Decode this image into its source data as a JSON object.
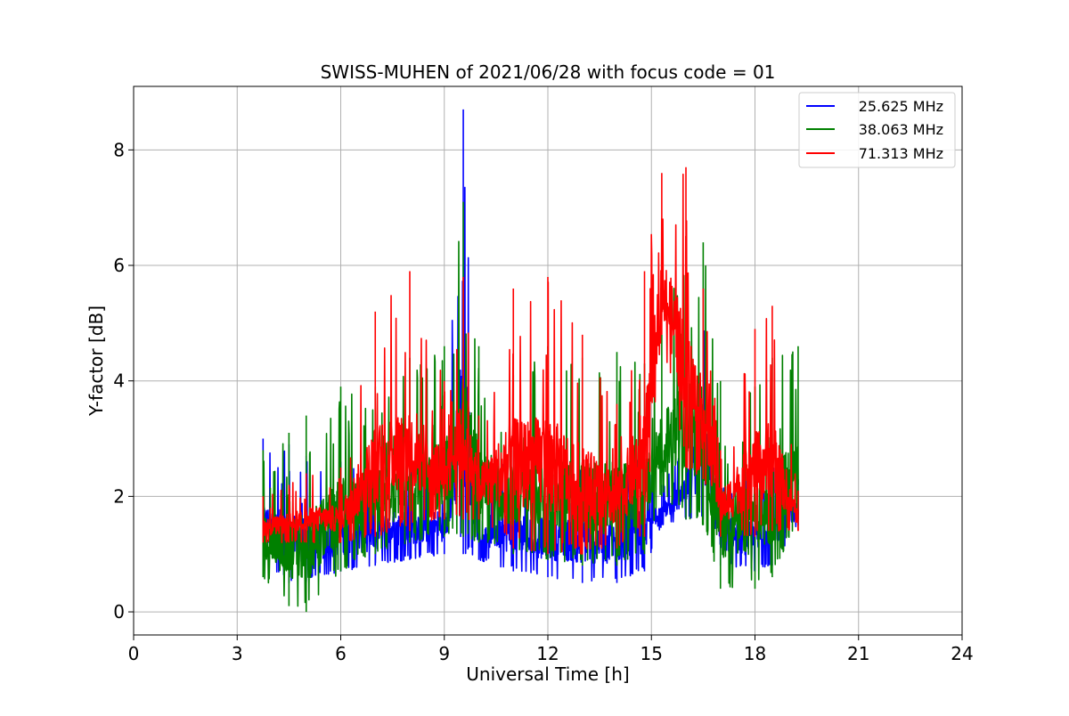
{
  "chart_data": {
    "type": "line",
    "title": "SWISS-MUHEN of 2021/06/28 with focus code = 01",
    "xlabel": "Universal Time [h]",
    "ylabel": "Y-factor [dB]",
    "xlim": [
      0,
      24
    ],
    "ylim": [
      -0.4,
      9.1
    ],
    "xticks": [
      0,
      3,
      6,
      9,
      12,
      15,
      18,
      21,
      24
    ],
    "yticks": [
      0,
      2,
      4,
      6,
      8
    ],
    "xtick_labels": [
      "0",
      "3",
      "6",
      "9",
      "12",
      "15",
      "18",
      "21",
      "24"
    ],
    "ytick_labels": [
      "0",
      "2",
      "4",
      "6",
      "8"
    ],
    "grid": true,
    "legend_position": "top-right",
    "x_range_observed": [
      3.75,
      19.25
    ],
    "series": [
      {
        "name": "25.625 MHz",
        "color": "#0000ff",
        "x": [
          3.75,
          4.5,
          5.0,
          6.0,
          7.0,
          8.0,
          9.0,
          9.55,
          10.0,
          11.0,
          12.0,
          13.0,
          14.0,
          14.8,
          15.3,
          16.0,
          16.5,
          17.0,
          18.0,
          18.5,
          19.25
        ],
        "low": [
          0.8,
          0.5,
          0.5,
          0.7,
          0.8,
          0.9,
          1.0,
          1.0,
          0.9,
          0.7,
          0.6,
          0.5,
          0.5,
          0.7,
          1.5,
          1.6,
          1.6,
          0.8,
          0.7,
          0.8,
          1.5
        ],
        "high": [
          3.0,
          2.9,
          2.7,
          2.6,
          2.5,
          2.7,
          2.5,
          8.7,
          2.5,
          2.8,
          2.6,
          2.8,
          2.6,
          2.9,
          2.2,
          3.0,
          5.6,
          2.6,
          2.4,
          2.6,
          2.3
        ]
      },
      {
        "name": "38.063 MHz",
        "color": "#008000",
        "x": [
          3.75,
          4.5,
          5.0,
          6.0,
          7.0,
          8.0,
          9.0,
          9.55,
          10.0,
          11.0,
          12.0,
          13.0,
          14.0,
          14.8,
          15.3,
          16.0,
          16.5,
          17.0,
          18.0,
          18.5,
          19.25
        ],
        "low": [
          0.6,
          0.1,
          0.0,
          0.7,
          1.0,
          1.2,
          1.3,
          1.3,
          1.2,
          1.0,
          0.9,
          0.8,
          0.8,
          1.0,
          2.0,
          1.6,
          1.5,
          0.4,
          0.4,
          0.6,
          1.6
        ],
        "high": [
          2.8,
          3.1,
          3.4,
          3.9,
          3.9,
          4.4,
          4.6,
          7.1,
          4.6,
          4.1,
          4.6,
          4.4,
          4.5,
          4.3,
          4.8,
          6.4,
          6.4,
          4.0,
          3.9,
          4.4,
          4.6
        ]
      },
      {
        "name": "71.313 MHz",
        "color": "#ff0000",
        "x": [
          3.75,
          4.5,
          5.0,
          6.0,
          7.0,
          8.0,
          9.0,
          9.55,
          10.0,
          11.0,
          12.0,
          13.0,
          14.0,
          14.8,
          15.3,
          16.0,
          16.5,
          17.0,
          18.0,
          18.5,
          19.25
        ],
        "low": [
          1.2,
          1.2,
          1.2,
          1.2,
          1.3,
          1.4,
          1.6,
          1.6,
          1.6,
          1.1,
          1.0,
          1.0,
          1.1,
          1.3,
          4.8,
          2.5,
          2.3,
          1.3,
          1.3,
          1.4,
          1.4
        ],
        "high": [
          2.0,
          2.2,
          2.4,
          2.5,
          5.2,
          5.9,
          4.0,
          5.8,
          3.4,
          5.6,
          5.8,
          4.8,
          3.6,
          5.9,
          7.6,
          7.7,
          5.6,
          2.8,
          4.9,
          5.3,
          2.1
        ]
      }
    ]
  }
}
